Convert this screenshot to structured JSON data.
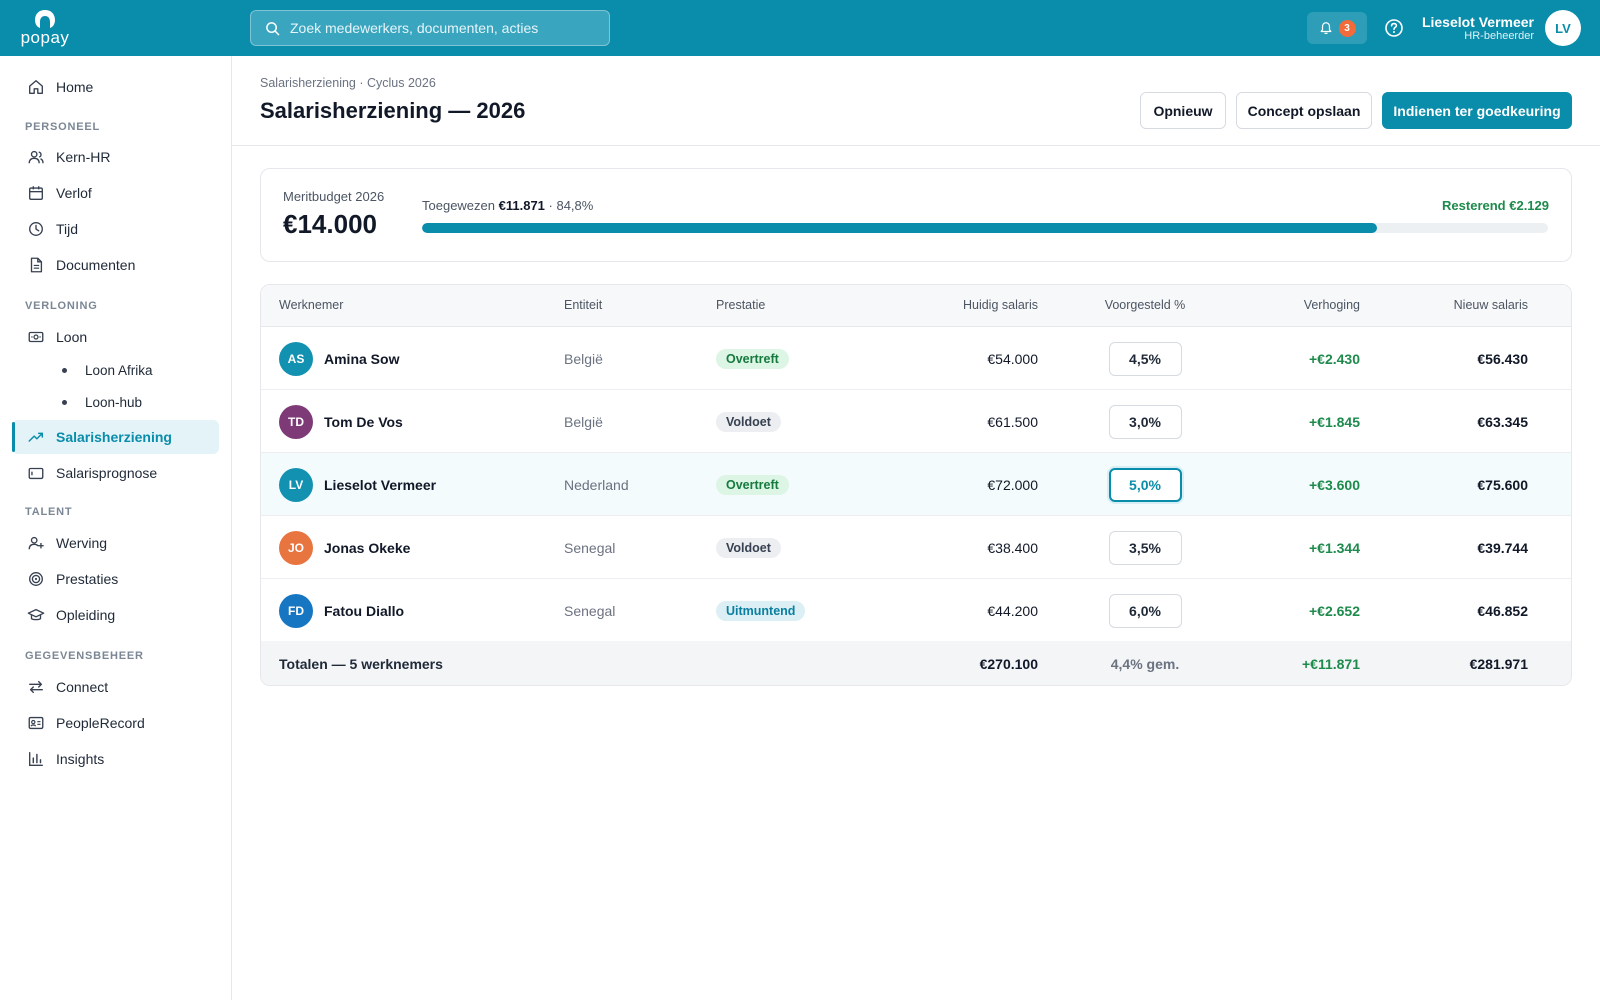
{
  "app": {
    "logo_text": "popay",
    "accent": "#0a8cab"
  },
  "search": {
    "placeholder": "Zoek medewerkers, documenten, acties"
  },
  "header": {
    "notification_count": "3",
    "user_name": "Lieselot Vermeer",
    "user_role": "HR-beheerder",
    "user_initials": "LV"
  },
  "sidebar": {
    "home": "Home",
    "sections": {
      "personeel": "PERSONEEL",
      "verloning": "VERLONING",
      "talent": "TALENT",
      "gegevensbeheer": "GEGEVENSBEHEER"
    },
    "items": {
      "kern_hr": "Kern-HR",
      "verlof": "Verlof",
      "tijd": "Tijd",
      "documenten": "Documenten",
      "loon": "Loon",
      "loon_afrika": "Loon Afrika",
      "loon_hub": "Loon-hub",
      "salarisherziening": "Salarisherziening",
      "salarisprognose": "Salarisprognose",
      "werving": "Werving",
      "prestaties": "Prestaties",
      "opleiding": "Opleiding",
      "connect": "Connect",
      "peoplerecord": "PeopleRecord",
      "insights": "Insights"
    }
  },
  "page": {
    "breadcrumb": "Salarisherziening · Cyclus 2026",
    "title": "Salarisherziening — 2026",
    "actions": {
      "reset": "Opnieuw",
      "save_draft": "Concept opslaan",
      "submit": "Indienen ter goedkeuring"
    }
  },
  "budget": {
    "label": "Meritbudget 2026",
    "amount": "€14.000",
    "allocated_prefix": "Toegewezen",
    "allocated_amount": "€11.871",
    "allocated_suffix": "· 84,8%",
    "allocated_fraction": 0.848,
    "remaining": "Resterend €2.129"
  },
  "table": {
    "columns": [
      "Werknemer",
      "Entiteit",
      "Prestatie",
      "Huidig salaris",
      "Voorgesteld %",
      "Verhoging",
      "Nieuw salaris"
    ],
    "rows": [
      {
        "initials": "AS",
        "avatar_color": "#1391b0",
        "name": "Amina Sow",
        "entity": "België",
        "performance": "Overtreft",
        "perf_style": "green",
        "current": "€54.000",
        "proposed": "4,5%",
        "increase": "+€2.430",
        "new_salary": "€56.430"
      },
      {
        "initials": "TD",
        "avatar_color": "#7d3a76",
        "name": "Tom De Vos",
        "entity": "België",
        "performance": "Voldoet",
        "perf_style": "gray",
        "current": "€61.500",
        "proposed": "3,0%",
        "increase": "+€1.845",
        "new_salary": "€63.345"
      },
      {
        "initials": "LV",
        "avatar_color": "#1391b0",
        "name": "Lieselot Vermeer",
        "entity": "Nederland",
        "performance": "Overtreft",
        "perf_style": "green",
        "current": "€72.000",
        "proposed": "5,0%",
        "increase": "+€3.600",
        "new_salary": "€75.600"
      },
      {
        "initials": "JO",
        "avatar_color": "#e8743f",
        "name": "Jonas Okeke",
        "entity": "Senegal",
        "performance": "Voldoet",
        "perf_style": "gray",
        "current": "€38.400",
        "proposed": "3,5%",
        "increase": "+€1.344",
        "new_salary": "€39.744"
      },
      {
        "initials": "FD",
        "avatar_color": "#1676c2",
        "name": "Fatou Diallo",
        "entity": "Senegal",
        "performance": "Uitmuntend",
        "perf_style": "blue",
        "current": "€44.200",
        "proposed": "6,0%",
        "increase": "+€2.652",
        "new_salary": "€46.852"
      }
    ],
    "totals": {
      "label": "Totalen — 5 werknemers",
      "current": "€270.100",
      "avg_pct": "4,4% gem.",
      "increase": "+€11.871",
      "new_salary": "€281.971"
    }
  }
}
